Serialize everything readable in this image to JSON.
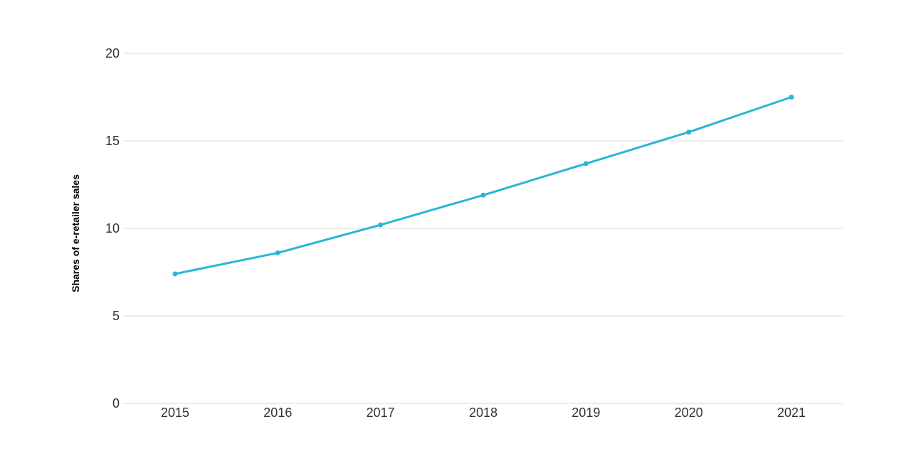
{
  "chart_data": {
    "type": "line",
    "title": "",
    "xlabel": "",
    "ylabel": "Shares of e-retailer sales",
    "categories": [
      "2015",
      "2016",
      "2017",
      "2018",
      "2019",
      "2020",
      "2021"
    ],
    "series": [
      {
        "values": [
          7.4,
          8.6,
          10.2,
          11.9,
          13.7,
          15.5,
          17.5
        ],
        "color": "#29b6d6"
      }
    ],
    "ylim": [
      0,
      20
    ],
    "yticks": [
      0,
      5,
      10,
      15,
      20
    ],
    "grid": true,
    "legend": "none",
    "gridline_color": "#d9d9d9",
    "text_color": "#333333"
  }
}
